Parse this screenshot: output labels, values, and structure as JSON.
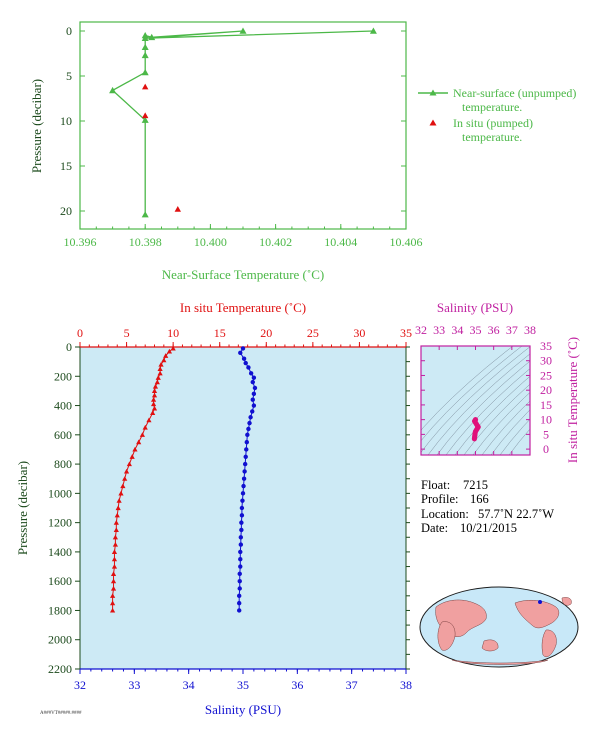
{
  "colors": {
    "green": "#4cb848",
    "red": "#e01010",
    "blue": "#1010d0",
    "magenta": "#c020a0",
    "darkgreen": "#1c4a1c",
    "panel_bg": "#cdeaf5",
    "land": "#f0a0a0",
    "ocean": "#c8e8f8"
  },
  "chart_data": [
    {
      "type": "line",
      "xlabel": "Near-Surface Temperature (˚C)",
      "ylabel": "Pressure (decibar)",
      "xlim": [
        10.396,
        10.406
      ],
      "ylim": [
        22,
        -1
      ],
      "x_ticks": [
        "10.396",
        "10.398",
        "10.400",
        "10.402",
        "10.404",
        "10.406"
      ],
      "y_ticks": [
        "0",
        "5",
        "10",
        "15",
        "20"
      ],
      "legend_position": "right",
      "series": [
        {
          "name": "Near-surface (unpumped) temperature.",
          "name_line2": "temperature.",
          "name_line1": "Near-surface (unpumped)",
          "marker": "triangle",
          "points": [
            {
              "x": 10.405,
              "y": 0.0
            },
            {
              "x": 10.398,
              "y": 0.8
            },
            {
              "x": 10.401,
              "y": 0.0
            },
            {
              "x": 10.3982,
              "y": 0.7
            },
            {
              "x": 10.398,
              "y": 0.5
            },
            {
              "x": 10.398,
              "y": 1.8
            },
            {
              "x": 10.398,
              "y": 2.7
            },
            {
              "x": 10.398,
              "y": 4.6
            },
            {
              "x": 10.397,
              "y": 6.6
            },
            {
              "x": 10.398,
              "y": 9.9
            },
            {
              "x": 10.398,
              "y": 20.4
            }
          ]
        },
        {
          "name": "In situ (pumped) temperature.",
          "name_line1": "In situ (pumped)",
          "name_line2": "temperature.",
          "marker": "triangle",
          "points": [
            {
              "x": 10.398,
              "y": 6.2
            },
            {
              "x": 10.398,
              "y": 9.4
            },
            {
              "x": 10.399,
              "y": 19.8
            }
          ]
        }
      ]
    },
    {
      "type": "scatter",
      "xlabel_top": "In situ Temperature (˚C)",
      "xlabel_bottom": "Salinity (PSU)",
      "ylabel": "Pressure (decibar)",
      "temp_xlim": [
        0,
        35
      ],
      "sal_xlim": [
        32,
        38
      ],
      "ylim": [
        2200,
        0
      ],
      "temp_ticks": [
        "0",
        "5",
        "10",
        "15",
        "20",
        "25",
        "30",
        "35"
      ],
      "sal_ticks": [
        "32",
        "33",
        "34",
        "35",
        "36",
        "37",
        "38"
      ],
      "y_ticks": [
        "0",
        "200",
        "400",
        "600",
        "800",
        "1000",
        "1200",
        "1400",
        "1600",
        "1800",
        "2000",
        "2200"
      ],
      "series": [
        {
          "name": "In situ Temperature",
          "axis": "top",
          "points": [
            [
              10.0,
              10
            ],
            [
              9.6,
              30
            ],
            [
              9.2,
              60
            ],
            [
              9.0,
              90
            ],
            [
              8.7,
              120
            ],
            [
              8.6,
              150
            ],
            [
              8.6,
              180
            ],
            [
              8.4,
              210
            ],
            [
              8.3,
              240
            ],
            [
              8.1,
              270
            ],
            [
              8.0,
              300
            ],
            [
              8.0,
              330
            ],
            [
              7.9,
              360
            ],
            [
              7.9,
              390
            ],
            [
              8.0,
              420
            ],
            [
              7.8,
              450
            ],
            [
              7.4,
              500
            ],
            [
              7.0,
              550
            ],
            [
              6.7,
              600
            ],
            [
              6.3,
              650
            ],
            [
              5.9,
              700
            ],
            [
              5.6,
              750
            ],
            [
              5.3,
              800
            ],
            [
              5.0,
              850
            ],
            [
              4.8,
              900
            ],
            [
              4.6,
              950
            ],
            [
              4.4,
              1000
            ],
            [
              4.2,
              1050
            ],
            [
              4.1,
              1100
            ],
            [
              4.0,
              1150
            ],
            [
              3.9,
              1200
            ],
            [
              3.9,
              1250
            ],
            [
              3.8,
              1300
            ],
            [
              3.8,
              1350
            ],
            [
              3.7,
              1400
            ],
            [
              3.7,
              1450
            ],
            [
              3.7,
              1500
            ],
            [
              3.6,
              1550
            ],
            [
              3.6,
              1600
            ],
            [
              3.6,
              1650
            ],
            [
              3.5,
              1700
            ],
            [
              3.5,
              1750
            ],
            [
              3.5,
              1800
            ]
          ]
        },
        {
          "name": "Salinity",
          "axis": "bottom",
          "points": [
            [
              35.0,
              10
            ],
            [
              34.95,
              40
            ],
            [
              35.02,
              80
            ],
            [
              35.05,
              110
            ],
            [
              35.1,
              140
            ],
            [
              35.15,
              180
            ],
            [
              35.2,
              210
            ],
            [
              35.18,
              240
            ],
            [
              35.22,
              280
            ],
            [
              35.2,
              320
            ],
            [
              35.18,
              360
            ],
            [
              35.2,
              400
            ],
            [
              35.17,
              440
            ],
            [
              35.14,
              480
            ],
            [
              35.12,
              520
            ],
            [
              35.1,
              560
            ],
            [
              35.08,
              600
            ],
            [
              35.07,
              650
            ],
            [
              35.06,
              700
            ],
            [
              35.05,
              750
            ],
            [
              35.04,
              800
            ],
            [
              35.03,
              850
            ],
            [
              35.02,
              900
            ],
            [
              35.01,
              950
            ],
            [
              35.0,
              1000
            ],
            [
              34.99,
              1050
            ],
            [
              34.98,
              1100
            ],
            [
              34.98,
              1150
            ],
            [
              34.97,
              1200
            ],
            [
              34.97,
              1250
            ],
            [
              34.96,
              1300
            ],
            [
              34.96,
              1350
            ],
            [
              34.95,
              1400
            ],
            [
              34.95,
              1450
            ],
            [
              34.95,
              1500
            ],
            [
              34.94,
              1550
            ],
            [
              34.94,
              1600
            ],
            [
              34.94,
              1650
            ],
            [
              34.93,
              1700
            ],
            [
              34.93,
              1750
            ],
            [
              34.93,
              1800
            ]
          ]
        }
      ]
    },
    {
      "type": "scatter",
      "title": "Salinity (PSU)",
      "ylabel": "In situ Temperature (˚C)",
      "xlim": [
        32,
        38
      ],
      "ylim": [
        -2,
        35
      ],
      "x_ticks": [
        "32",
        "33",
        "34",
        "35",
        "36",
        "37",
        "38"
      ],
      "y_ticks": [
        "0",
        "5",
        "10",
        "15",
        "20",
        "25",
        "30",
        "35"
      ],
      "points": [
        [
          35.0,
          10
        ],
        [
          34.95,
          9.5
        ],
        [
          35.0,
          9
        ],
        [
          35.05,
          8.5
        ],
        [
          35.1,
          8
        ],
        [
          35.15,
          7.5
        ],
        [
          35.1,
          7
        ],
        [
          35.05,
          6.5
        ],
        [
          35.0,
          6
        ],
        [
          34.98,
          5.5
        ],
        [
          34.97,
          5
        ],
        [
          34.96,
          4.5
        ],
        [
          34.95,
          4
        ],
        [
          34.94,
          3.5
        ]
      ]
    }
  ],
  "float_info": {
    "float_label": "Float:",
    "float_value": "7215",
    "profile_label": "Profile:",
    "profile_value": "166",
    "location_label": "Location:",
    "location_value": "57.7˚N  22.7˚W",
    "date_label": "Date:",
    "date_value": "10/21/2015"
  },
  "footnote": "A###VT#####.####"
}
